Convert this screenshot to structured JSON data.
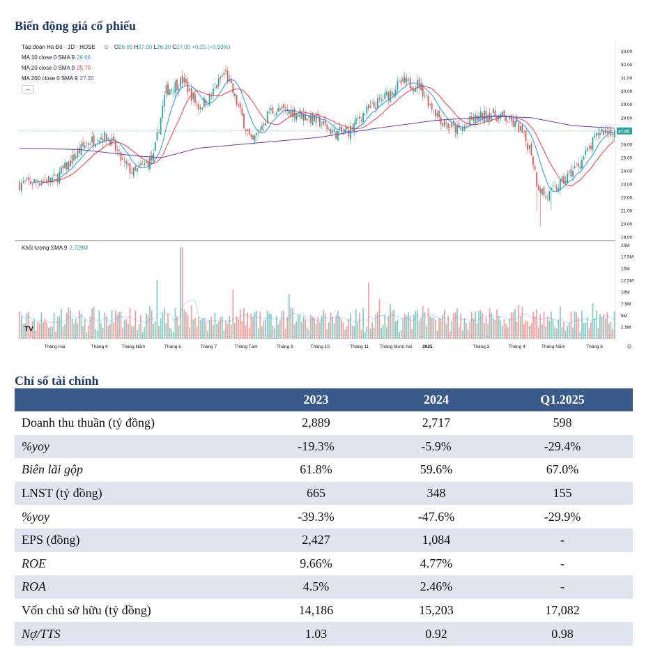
{
  "page": {
    "price_section_title": "Biến động giá cổ phiếu",
    "ratio_section_title": "Chỉ số tài chính"
  },
  "chart_header": {
    "symbol_line": "Tập đoàn Hà Đô · 1D · HOSE",
    "open_label": "O",
    "open": "26.65",
    "high_label": "H",
    "high": "27.00",
    "low_label": "L",
    "low": "26.30",
    "close_label": "C",
    "close": "27.00",
    "change": "+0.25 (+0.93%)",
    "ma10_label": "MA 10 close 0 SMA 9",
    "ma10_value": "26.66",
    "ma20_label": "MA 20 close 0 SMA 9",
    "ma20_value": "25.70",
    "ma200_label": "MA 200 close 0 SMA 9",
    "ma200_value": "27.20",
    "volume_label": "Khối lượng SMA 9",
    "volume_value": "2.729M",
    "current_price_tag": "27.00",
    "logo": "TV"
  },
  "colors": {
    "up": "#26a69a",
    "down": "#ef5350",
    "ma10": "#2196f3",
    "ma20": "#f23645",
    "ma200": "#673ab7",
    "header_fill": "#3a5a8c",
    "title": "#1f3864",
    "alt_row": "#dfe4ef"
  },
  "chart_data": {
    "type": "candlestick",
    "title": "Biến động giá cổ phiếu",
    "price_axis": [
      "33.00",
      "32.00",
      "31.00",
      "30.00",
      "29.00",
      "28.00",
      "27.00",
      "26.00",
      "25.00",
      "24.00",
      "23.00",
      "22.00",
      "21.00",
      "20.00",
      "19.00"
    ],
    "price_range": [
      19,
      33.4
    ],
    "volume_axis": [
      "20M",
      "17.5M",
      "15M",
      "12.5M",
      "10M",
      "7.5M",
      "5M",
      "2.5M"
    ],
    "volume_range": [
      0,
      20.5
    ],
    "x_ticks": [
      "Tháng Hai",
      "Tháng 4",
      "Tháng Năm",
      "Tháng 6",
      "Tháng 7",
      "Tháng Tám",
      "Tháng 9",
      "Tháng 10",
      "Tháng 11",
      "Tháng Mười hai",
      "2025",
      "Tháng 3",
      "Tháng 4",
      "Tháng Năm",
      "Tháng 6"
    ],
    "x_tick_positions": [
      0.06,
      0.135,
      0.192,
      0.258,
      0.318,
      0.381,
      0.446,
      0.505,
      0.571,
      0.632,
      0.685,
      0.775,
      0.835,
      0.896,
      0.965
    ],
    "close_anchors": [
      [
        0,
        23.0
      ],
      [
        0.06,
        23.4
      ],
      [
        0.08,
        24.4
      ],
      [
        0.11,
        26.0
      ],
      [
        0.135,
        26.6
      ],
      [
        0.15,
        26.5
      ],
      [
        0.175,
        24.5
      ],
      [
        0.192,
        23.8
      ],
      [
        0.225,
        25.0
      ],
      [
        0.245,
        30.0
      ],
      [
        0.275,
        30.8
      ],
      [
        0.3,
        28.8
      ],
      [
        0.32,
        29.5
      ],
      [
        0.345,
        31.5
      ],
      [
        0.37,
        28.5
      ],
      [
        0.39,
        26.0
      ],
      [
        0.42,
        28.5
      ],
      [
        0.45,
        28.5
      ],
      [
        0.47,
        28.3
      ],
      [
        0.5,
        27.8
      ],
      [
        0.53,
        26.8
      ],
      [
        0.555,
        27.0
      ],
      [
        0.575,
        28.2
      ],
      [
        0.6,
        29.0
      ],
      [
        0.64,
        30.6
      ],
      [
        0.672,
        30.5
      ],
      [
        0.69,
        29.0
      ],
      [
        0.715,
        27.5
      ],
      [
        0.74,
        27.0
      ],
      [
        0.76,
        27.8
      ],
      [
        0.79,
        28.3
      ],
      [
        0.815,
        28.0
      ],
      [
        0.84,
        27.2
      ],
      [
        0.86,
        25.5
      ],
      [
        0.87,
        23.0
      ],
      [
        0.885,
        22.0
      ],
      [
        0.905,
        22.8
      ],
      [
        0.92,
        23.5
      ],
      [
        0.94,
        24.5
      ],
      [
        0.96,
        25.8
      ],
      [
        0.975,
        27.0
      ],
      [
        1,
        27.0
      ]
    ],
    "ma200_anchors": [
      [
        0,
        25.7
      ],
      [
        0.1,
        25.6
      ],
      [
        0.2,
        25.1
      ],
      [
        0.24,
        25.0
      ],
      [
        0.3,
        25.7
      ],
      [
        0.4,
        26.1
      ],
      [
        0.5,
        26.5
      ],
      [
        0.6,
        27.2
      ],
      [
        0.7,
        27.8
      ],
      [
        0.8,
        28.1
      ],
      [
        0.86,
        28.0
      ],
      [
        0.93,
        27.4
      ],
      [
        1,
        27.2
      ]
    ],
    "volume_spikes": [
      [
        0.272,
        19.5
      ],
      [
        0.232,
        12.5
      ],
      [
        0.586,
        12.0
      ],
      [
        0.452,
        9.5
      ],
      [
        0.358,
        10.5
      ],
      [
        0.605,
        8.5
      ],
      [
        0.735,
        6.5
      ],
      [
        0.944,
        6.0
      ]
    ]
  },
  "financial_table": {
    "headers": [
      "",
      "2023",
      "2024",
      "Q1.2025"
    ],
    "rows": [
      {
        "label": "Doanh thu thuần (tỷ đồng)",
        "values": [
          "2,889",
          "2,717",
          "598"
        ]
      },
      {
        "label": "%yoy",
        "values": [
          "-19.3%",
          "-5.9%",
          "-29.4%"
        ]
      },
      {
        "label": "Biên lãi gộp",
        "values": [
          "61.8%",
          "59.6%",
          "67.0%"
        ]
      },
      {
        "label": "LNST (tỷ đồng)",
        "values": [
          "665",
          "348",
          "155"
        ]
      },
      {
        "label": "%yoy",
        "values": [
          "-39.3%",
          "-47.6%",
          "-29.9%"
        ]
      },
      {
        "label": "EPS (đồng)",
        "values": [
          "2,427",
          "1,084",
          "-"
        ]
      },
      {
        "label": "ROE",
        "values": [
          "9.66%",
          "4.77%",
          "-"
        ]
      },
      {
        "label": "ROA",
        "values": [
          "4.5%",
          "2.46%",
          "-"
        ]
      },
      {
        "label": "Vốn chủ sở hữu (tỷ đồng)",
        "values": [
          "14,186",
          "15,203",
          "17,082"
        ]
      },
      {
        "label": "Nợ/TTS",
        "values": [
          "1.03",
          "0.92",
          "0.98"
        ]
      }
    ]
  }
}
